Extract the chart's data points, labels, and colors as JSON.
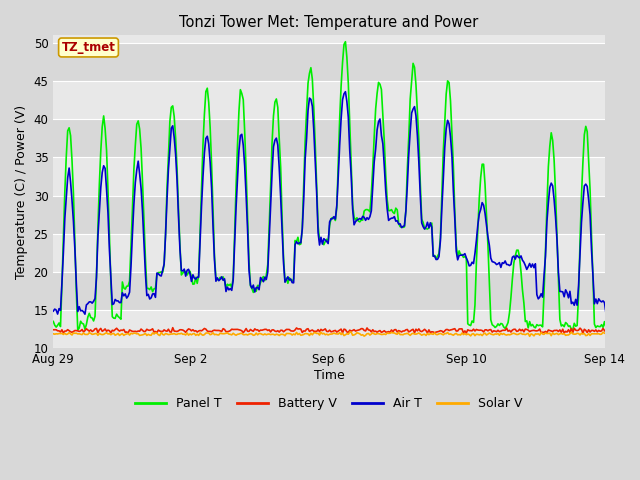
{
  "title": "Tonzi Tower Met: Temperature and Power",
  "xlabel": "Time",
  "ylabel": "Temperature (C) / Power (V)",
  "ylim": [
    10,
    51
  ],
  "yticks": [
    10,
    15,
    20,
    25,
    30,
    35,
    40,
    45,
    50
  ],
  "bg_color": "#d8d8d8",
  "plot_bg_color": "#e8e8e8",
  "band_color_light": "#e8e8e8",
  "band_color_dark": "#d8d8d8",
  "grid_color": "#cccccc",
  "legend_label": "TZ_tmet",
  "legend_box_color": "#ffffcc",
  "legend_box_edge": "#cc9900",
  "legend_text_color": "#aa0000",
  "series": {
    "panel_t": {
      "label": "Panel T",
      "color": "#00ee00",
      "lw": 1.2
    },
    "battery_v": {
      "label": "Battery V",
      "color": "#ee2200",
      "lw": 1.2
    },
    "air_t": {
      "label": "Air T",
      "color": "#0000cc",
      "lw": 1.2
    },
    "solar_v": {
      "label": "Solar V",
      "color": "#ffaa00",
      "lw": 1.2
    }
  },
  "x_tick_labels": [
    "Aug 29",
    "Sep 2",
    "Sep 6",
    "Sep 10",
    "Sep 14"
  ],
  "x_tick_positions": [
    0,
    4,
    8,
    12,
    16
  ],
  "total_days": 17
}
